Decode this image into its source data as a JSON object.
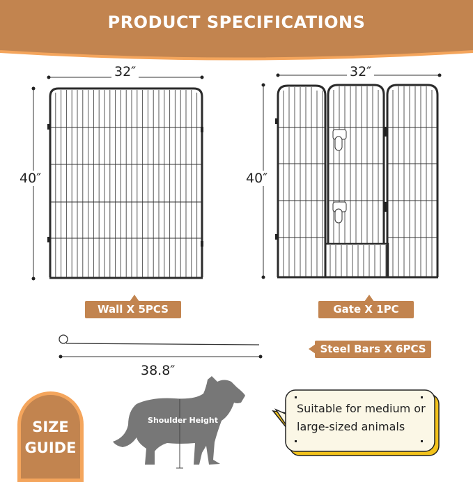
{
  "header": {
    "title": "PRODUCT SPECIFICATIONS"
  },
  "colors": {
    "brand": "#c2844f",
    "accent_border": "#f4a55c",
    "bubble_fill": "#fbf7e6",
    "bubble_shadow": "#f2c21b",
    "panel_stroke": "#2b2b2b"
  },
  "wall": {
    "width": "32″",
    "height": "40″",
    "label": "Wall X 5PCS"
  },
  "gate": {
    "width": "32″",
    "height": "40″",
    "label": "Gate X 1PC"
  },
  "steel_bars": {
    "length": "38.8″",
    "label": "Steel Bars X 6PCS"
  },
  "size_guide": {
    "line1": "SIZE",
    "line2": "GUIDE",
    "shoulder_label": "Shoulder Height",
    "note": "Suitable for medium or large-sized animals"
  }
}
